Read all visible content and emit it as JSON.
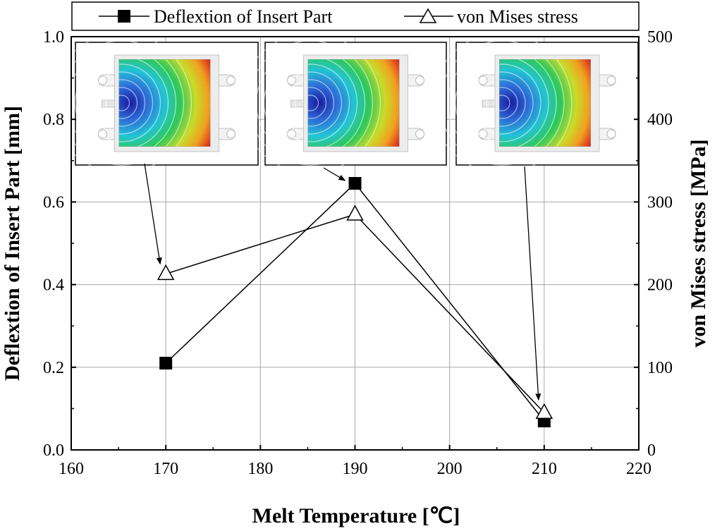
{
  "chart_data": {
    "type": "line",
    "title": "",
    "xlabel": "Melt Temperature [℃]",
    "ylabel": "Deflextion of Insert Part [mm]",
    "y2label": "von Mises stress [MPa]",
    "xlim": [
      160,
      220
    ],
    "ylim": [
      0.0,
      1.0
    ],
    "y2lim": [
      0,
      500
    ],
    "x_ticks": [
      "160",
      "170",
      "180",
      "190",
      "200",
      "210",
      "220"
    ],
    "y_ticks": [
      "0.0",
      "0.2",
      "0.4",
      "0.6",
      "0.8",
      "1.0"
    ],
    "y2_ticks": [
      "0",
      "100",
      "200",
      "300",
      "400",
      "500"
    ],
    "grid": true,
    "legend_position": "top",
    "series": [
      {
        "name": "Deflextion of Insert Part",
        "axis": "left",
        "marker": "filled-square",
        "x": [
          170,
          190,
          210
        ],
        "values": [
          0.21,
          0.645,
          0.07
        ]
      },
      {
        "name": "von Mises stress",
        "axis": "right",
        "marker": "open-triangle",
        "x": [
          170,
          190,
          210
        ],
        "values": [
          213,
          285,
          45
        ]
      }
    ],
    "insets": [
      {
        "name": "deformation-contour-170",
        "points_to_x": 170
      },
      {
        "name": "deformation-contour-190",
        "points_to_x": 190
      },
      {
        "name": "deformation-contour-210",
        "points_to_x": 210
      }
    ]
  }
}
